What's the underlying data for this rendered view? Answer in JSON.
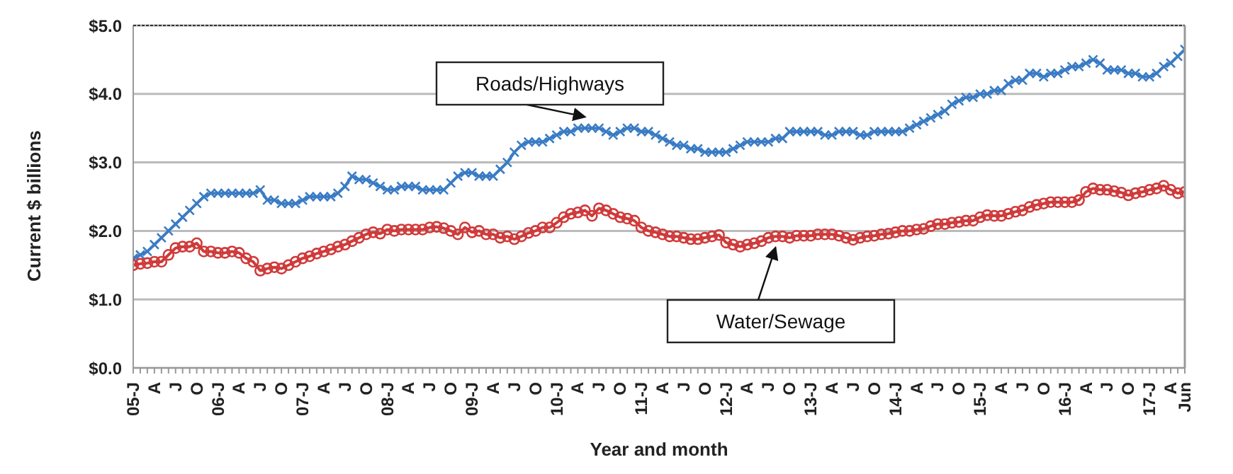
{
  "chart_data": {
    "type": "line",
    "xlabel": "Year and month",
    "ylabel": "Current $ billions",
    "categories": [
      "05-J",
      null,
      null,
      "A",
      null,
      null,
      "J",
      null,
      null,
      "O",
      null,
      null,
      "06-J",
      null,
      null,
      "A",
      null,
      null,
      "J",
      null,
      null,
      "O",
      null,
      null,
      "07-J",
      null,
      null,
      "A",
      null,
      null,
      "J",
      null,
      null,
      "O",
      null,
      null,
      "08-J",
      null,
      null,
      "A",
      null,
      null,
      "J",
      null,
      null,
      "O",
      null,
      null,
      "09-J",
      null,
      null,
      "A",
      null,
      null,
      "J",
      null,
      null,
      "O",
      null,
      null,
      "10-J",
      null,
      null,
      "A",
      null,
      null,
      "J",
      null,
      null,
      "O",
      null,
      null,
      "11-J",
      null,
      null,
      "A",
      null,
      null,
      "J",
      null,
      null,
      "O",
      null,
      null,
      "12-J",
      null,
      null,
      "A",
      null,
      null,
      "J",
      null,
      null,
      "O",
      null,
      null,
      "13-J",
      null,
      null,
      "A",
      null,
      null,
      "J",
      null,
      null,
      "O",
      null,
      null,
      "14-J",
      null,
      null,
      "A",
      null,
      null,
      "J",
      null,
      null,
      "O",
      null,
      null,
      "15-J",
      null,
      null,
      "A",
      null,
      null,
      "J",
      null,
      null,
      "O",
      null,
      null,
      "16-J",
      null,
      null,
      "A",
      null,
      null,
      "J",
      null,
      null,
      "O",
      null,
      null,
      "17-J",
      null,
      null,
      "A",
      null,
      "Jun"
    ],
    "series": [
      {
        "name": "Roads/Highways",
        "color": "#3a7cc4",
        "marker": "cross",
        "values": [
          1.6,
          1.65,
          1.7,
          1.8,
          1.9,
          2.0,
          2.1,
          2.2,
          2.3,
          2.4,
          2.5,
          2.55,
          2.55,
          2.55,
          2.55,
          2.55,
          2.55,
          2.55,
          2.6,
          2.45,
          2.45,
          2.4,
          2.4,
          2.4,
          2.45,
          2.5,
          2.5,
          2.5,
          2.5,
          2.55,
          2.65,
          2.8,
          2.75,
          2.75,
          2.7,
          2.65,
          2.6,
          2.6,
          2.65,
          2.65,
          2.65,
          2.6,
          2.6,
          2.6,
          2.6,
          2.7,
          2.8,
          2.85,
          2.85,
          2.8,
          2.8,
          2.8,
          2.9,
          3.0,
          3.15,
          3.25,
          3.3,
          3.3,
          3.3,
          3.35,
          3.4,
          3.45,
          3.45,
          3.5,
          3.5,
          3.5,
          3.5,
          3.45,
          3.4,
          3.45,
          3.5,
          3.5,
          3.45,
          3.45,
          3.4,
          3.35,
          3.3,
          3.25,
          3.25,
          3.2,
          3.2,
          3.15,
          3.15,
          3.15,
          3.15,
          3.2,
          3.25,
          3.3,
          3.3,
          3.3,
          3.3,
          3.35,
          3.35,
          3.45,
          3.45,
          3.45,
          3.45,
          3.45,
          3.4,
          3.4,
          3.45,
          3.45,
          3.45,
          3.4,
          3.4,
          3.45,
          3.45,
          3.45,
          3.45,
          3.45,
          3.5,
          3.55,
          3.6,
          3.65,
          3.7,
          3.75,
          3.85,
          3.9,
          3.95,
          3.95,
          4.0,
          4.0,
          4.05,
          4.05,
          4.15,
          4.2,
          4.2,
          4.3,
          4.3,
          4.25,
          4.3,
          4.3,
          4.35,
          4.4,
          4.4,
          4.45,
          4.5,
          4.45,
          4.35,
          4.35,
          4.35,
          4.3,
          4.3,
          4.25,
          4.25,
          4.3,
          4.4,
          4.45,
          4.55,
          4.65
        ]
      },
      {
        "name": "Water/Sewage",
        "color": "#d03a3a",
        "marker": "circle",
        "values": [
          1.5,
          1.52,
          1.53,
          1.55,
          1.55,
          1.65,
          1.75,
          1.77,
          1.77,
          1.82,
          1.7,
          1.7,
          1.68,
          1.68,
          1.7,
          1.68,
          1.6,
          1.55,
          1.42,
          1.45,
          1.47,
          1.45,
          1.5,
          1.55,
          1.6,
          1.63,
          1.67,
          1.7,
          1.73,
          1.77,
          1.8,
          1.85,
          1.9,
          1.95,
          1.98,
          1.96,
          2.02,
          2.0,
          2.02,
          2.02,
          2.02,
          2.02,
          2.05,
          2.06,
          2.04,
          2.0,
          1.95,
          2.05,
          1.98,
          2.0,
          1.95,
          1.95,
          1.9,
          1.92,
          1.88,
          1.92,
          1.97,
          2.0,
          2.05,
          2.05,
          2.12,
          2.2,
          2.25,
          2.27,
          2.3,
          2.22,
          2.33,
          2.3,
          2.25,
          2.2,
          2.18,
          2.15,
          2.05,
          2.0,
          1.98,
          1.95,
          1.92,
          1.92,
          1.9,
          1.88,
          1.88,
          1.9,
          1.92,
          1.94,
          1.83,
          1.8,
          1.77,
          1.8,
          1.82,
          1.85,
          1.9,
          1.92,
          1.92,
          1.9,
          1.93,
          1.93,
          1.93,
          1.95,
          1.95,
          1.95,
          1.93,
          1.9,
          1.87,
          1.9,
          1.92,
          1.93,
          1.95,
          1.96,
          1.98,
          2.0,
          2.0,
          2.02,
          2.03,
          2.07,
          2.1,
          2.1,
          2.12,
          2.13,
          2.15,
          2.15,
          2.2,
          2.23,
          2.22,
          2.22,
          2.25,
          2.28,
          2.3,
          2.35,
          2.38,
          2.4,
          2.42,
          2.42,
          2.42,
          2.42,
          2.45,
          2.57,
          2.62,
          2.6,
          2.6,
          2.58,
          2.56,
          2.52,
          2.55,
          2.57,
          2.6,
          2.62,
          2.66,
          2.6,
          2.55,
          2.57
        ]
      }
    ],
    "ylim": [
      0,
      5
    ],
    "yticks": [
      {
        "value": 0,
        "label": "$0.0"
      },
      {
        "value": 1,
        "label": "$1.0"
      },
      {
        "value": 2,
        "label": "$2.0"
      },
      {
        "value": 3,
        "label": "$3.0"
      },
      {
        "value": 4,
        "label": "$4.0"
      },
      {
        "value": 5,
        "label": "$5.0"
      }
    ],
    "grid": "y",
    "legend": false,
    "line_style": "solid"
  }
}
